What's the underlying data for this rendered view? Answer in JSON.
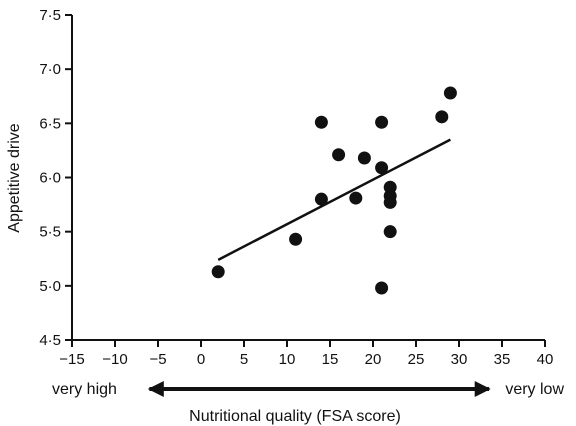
{
  "chart_data": {
    "type": "scatter",
    "xlabel": "Nutritional quality (FSA score)",
    "ylabel": "Appetitive drive",
    "xlim": [
      -15,
      40
    ],
    "ylim": [
      4.5,
      7.5
    ],
    "x_ticks": [
      "−15",
      "−10",
      "−5",
      "0",
      "5",
      "10",
      "15",
      "20",
      "25",
      "30",
      "35",
      "40"
    ],
    "x_tick_values": [
      -15,
      -10,
      -5,
      0,
      5,
      10,
      15,
      20,
      25,
      30,
      35,
      40
    ],
    "y_ticks": [
      "4·5",
      "5·0",
      "5·5",
      "6·0",
      "6·5",
      "7·0",
      "7·5"
    ],
    "y_tick_values": [
      4.5,
      5.0,
      5.5,
      6.0,
      6.5,
      7.0,
      7.5
    ],
    "points": [
      {
        "x": 2,
        "y": 5.13
      },
      {
        "x": 11,
        "y": 5.43
      },
      {
        "x": 14,
        "y": 6.51
      },
      {
        "x": 14,
        "y": 5.8
      },
      {
        "x": 16,
        "y": 6.21
      },
      {
        "x": 18,
        "y": 5.81
      },
      {
        "x": 19,
        "y": 6.18
      },
      {
        "x": 21,
        "y": 6.51
      },
      {
        "x": 21,
        "y": 6.09
      },
      {
        "x": 21,
        "y": 4.98
      },
      {
        "x": 22,
        "y": 5.91
      },
      {
        "x": 22,
        "y": 5.83
      },
      {
        "x": 22,
        "y": 5.77
      },
      {
        "x": 22,
        "y": 5.5
      },
      {
        "x": 28,
        "y": 6.56
      },
      {
        "x": 29,
        "y": 6.78
      }
    ],
    "trendline": {
      "x1": 2,
      "y1": 5.24,
      "x2": 29,
      "y2": 6.35
    },
    "grid": false,
    "legend": "none",
    "quality_arrow": {
      "left_label": "very high",
      "right_label": "very low",
      "from": -6,
      "to": 33.5
    }
  }
}
